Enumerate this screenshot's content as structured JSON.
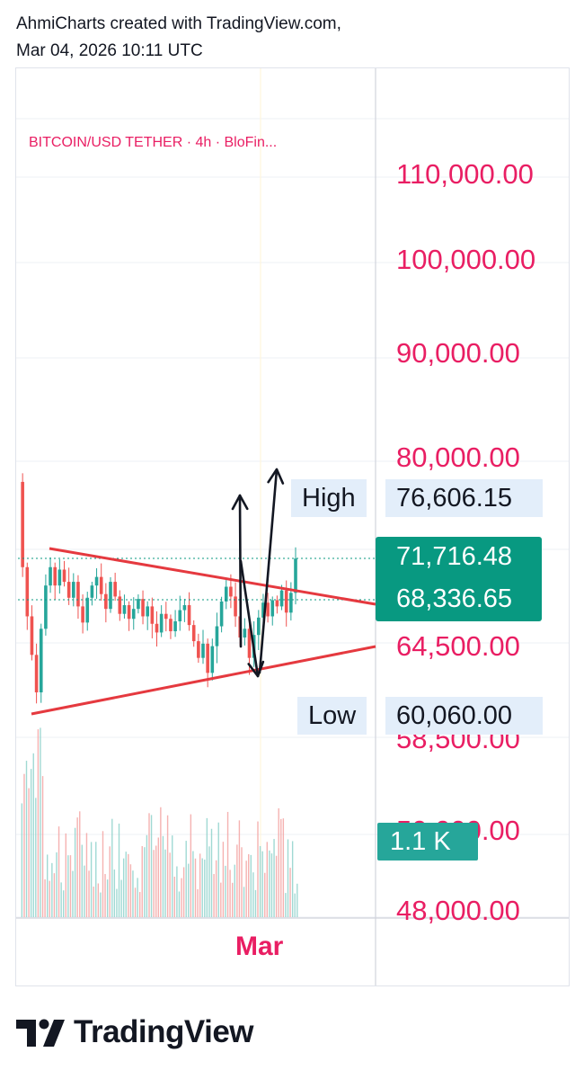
{
  "header": {
    "line1": "AhmiCharts created with TradingView.com,",
    "line2": "Mar 04, 2026 10:11 UTC"
  },
  "symbol_line": "BITCOIN/USD TETHER · 4h · BloFin...",
  "price_axis": [
    "110,000.00",
    "100,000.00",
    "90,000.00",
    "80,000.00",
    "64,500.00",
    "58,500.00",
    "50,000.00",
    "48,000.00"
  ],
  "tags": {
    "high_label": "High",
    "high_value": "76,606.15",
    "last_price": "71,716.48",
    "prev_close": "68,336.65",
    "low_label": "Low",
    "low_value": "60,060.00",
    "volume": "1.1 K"
  },
  "time_axis_label": "Mar",
  "brand": "TradingView",
  "colors": {
    "accent": "#e91e63",
    "up": "#26a69a",
    "down": "#ef5350",
    "trendline": "#e5393f",
    "green_tag": "#089981",
    "hl_tag": "#e3eefa"
  },
  "chart_data": {
    "type": "candlestick",
    "title": "BITCOIN/USD TETHER · 4h · BloFin...",
    "ylim": [
      48000,
      112000
    ],
    "y_ticks": [
      110000,
      100000,
      90000,
      80000,
      64500,
      58500,
      50000,
      48000
    ],
    "x_tick_labels": [
      "Mar"
    ],
    "high": 76606.15,
    "low": 60060.0,
    "last": 71716.48,
    "prev_close": 68336.65,
    "volume_last": "1.1 K",
    "close_path": [
      78000,
      71000,
      67000,
      64000,
      61500,
      66000,
      69500,
      71000,
      69500,
      70800,
      69800,
      68500,
      69800,
      67800,
      66500,
      68500,
      69500,
      70200,
      68800,
      67600,
      69800,
      68600,
      67200,
      67900,
      66800,
      67600,
      68400,
      67000,
      67800,
      66400,
      65700,
      67200,
      66800,
      65800,
      66600,
      67500,
      67900,
      66300,
      65000,
      63800,
      64800,
      62800,
      64600,
      66200,
      68200,
      69400,
      68600,
      67000,
      65300,
      66000,
      63800,
      65500,
      66900,
      68100,
      67000,
      68300,
      67800,
      69100,
      67300,
      68900,
      71700
    ],
    "annotations": [
      "descending trendline",
      "ascending trendline",
      "up arrow",
      "down arrow",
      "up arrow"
    ]
  }
}
